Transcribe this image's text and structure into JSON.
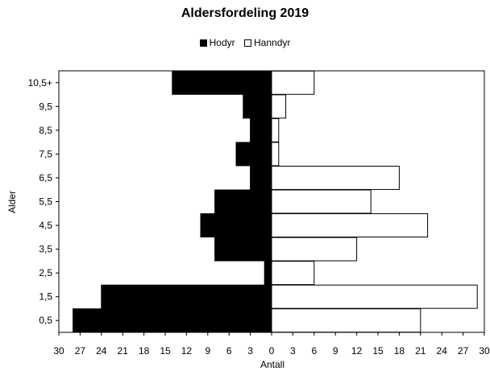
{
  "chart_data": {
    "type": "bar",
    "orientation": "horizontal",
    "title": "Aldersfordeling 2019",
    "xlabel": "Antall",
    "ylabel": "Alder",
    "categories": [
      "0,5",
      "1,5",
      "2,5",
      "3,5",
      "4,5",
      "5,5",
      "6,5",
      "7,5",
      "8,5",
      "9,5",
      "10,5+"
    ],
    "series": [
      {
        "name": "Hodyr",
        "values": [
          28,
          24,
          1,
          8,
          10,
          8,
          3,
          5,
          3,
          4,
          14
        ],
        "side": "left",
        "color": "#000000"
      },
      {
        "name": "Hanndyr",
        "values": [
          21,
          29,
          6,
          12,
          22,
          14,
          18,
          1,
          1,
          2,
          6
        ],
        "side": "right",
        "color": "#ffffff"
      }
    ],
    "xlim": [
      -30,
      30
    ],
    "x_ticks": [
      "30",
      "27",
      "24",
      "21",
      "18",
      "15",
      "12",
      "9",
      "6",
      "3",
      "0",
      "3",
      "6",
      "9",
      "12",
      "15",
      "18",
      "21",
      "24",
      "27",
      "30"
    ],
    "legend_position": "top",
    "grid": false
  }
}
